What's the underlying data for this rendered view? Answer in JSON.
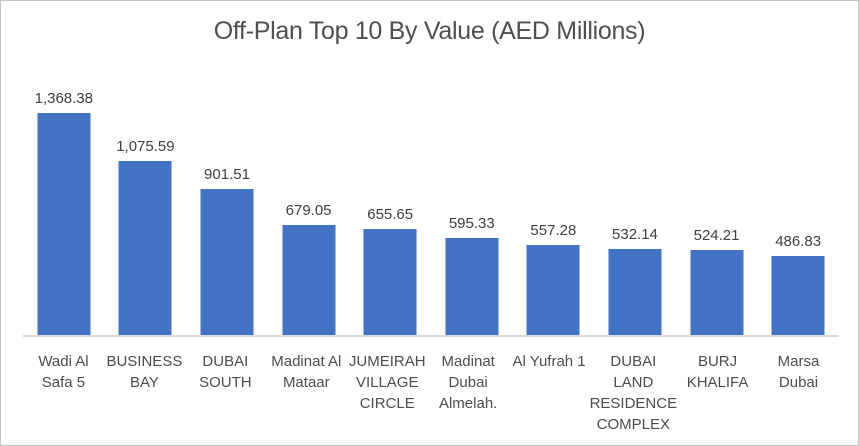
{
  "frame": {
    "background": "#ffffff",
    "border_color": "#c3c3c3"
  },
  "chart_data": {
    "type": "bar",
    "title": "Off-Plan Top 10 By Value (AED Millions)",
    "categories": [
      "Wadi Al Safa 5",
      "BUSINESS BAY",
      "DUBAI SOUTH",
      "Madinat Al Mataar",
      "JUMEIRAH VILLAGE CIRCLE",
      "Madinat Dubai Almelah.",
      "Al Yufrah 1",
      "DUBAI LAND RESIDENCE COMPLEX",
      "BURJ KHALIFA",
      "Marsa Dubai"
    ],
    "tick_labels": [
      "Wadi Al\nSafa 5",
      "BUSINESS\nBAY",
      "DUBAI\nSOUTH",
      "Madinat Al\nMataar",
      "JUMEIRAH\nVILLAGE\nCIRCLE",
      "Madinat\nDubai\nAlmelah.",
      "Al Yufrah 1",
      "DUBAI\nLAND\nRESIDENCE\nCOMPLEX",
      "BURJ\nKHALIFA",
      "Marsa\nDubai"
    ],
    "values": [
      1368.38,
      1075.59,
      901.51,
      679.05,
      655.65,
      595.33,
      557.28,
      532.14,
      524.21,
      486.83
    ],
    "value_labels": [
      "1,368.38",
      "1,075.59",
      "901.51",
      "679.05",
      "655.65",
      "595.33",
      "557.28",
      "532.14",
      "524.21",
      "486.83"
    ],
    "xlabel": "",
    "ylabel": "",
    "ylim": [
      0,
      1400
    ],
    "grid": false,
    "legend": false,
    "bar_color": "#4472c4",
    "axis_line_color": "#d9d9d9",
    "title_color": "#4f4f4f",
    "label_color": "#3f3f3f",
    "tick_color": "#4d4d4d"
  }
}
